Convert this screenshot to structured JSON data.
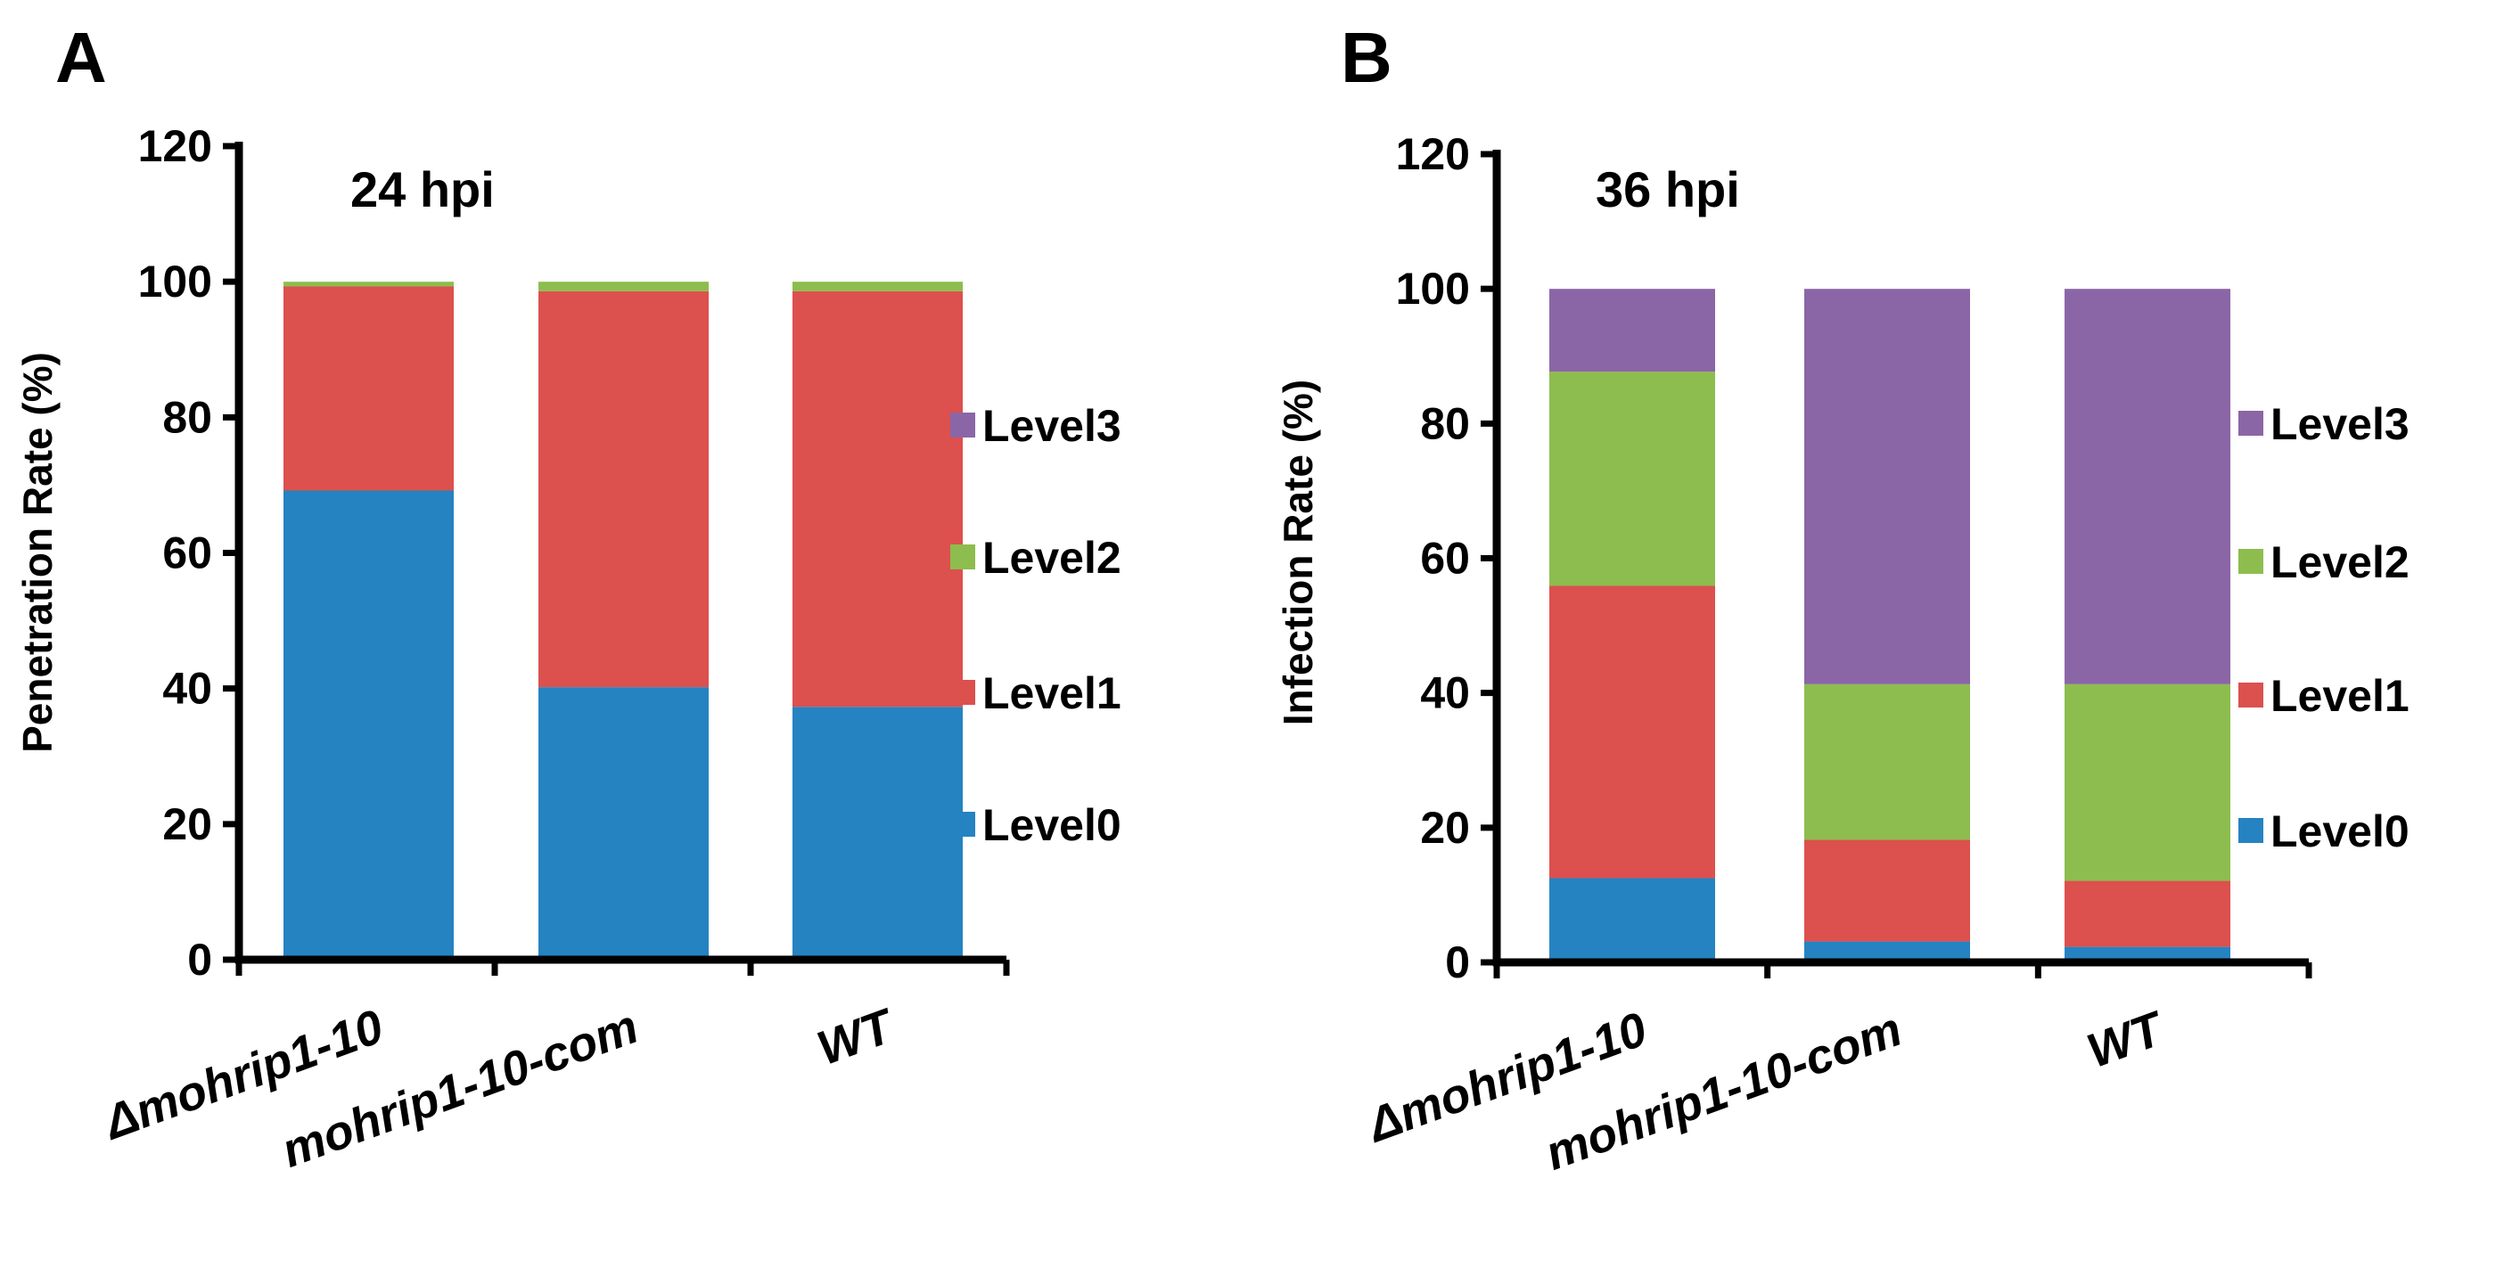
{
  "colors": {
    "Level0": "#2583c1",
    "Level1": "#dc504e",
    "Level2": "#8dbd4e",
    "Level3": "#8b66a6"
  },
  "chart_data": [
    {
      "panel": "A",
      "type": "bar",
      "stacked": true,
      "title": "24 hpi",
      "ylabel": "Penetration Rate (%)",
      "xlabel": "",
      "ylim": [
        0,
        120
      ],
      "yticks": [
        "0",
        "20",
        "40",
        "60",
        "80",
        "100",
        "120"
      ],
      "categories": [
        "Δmohrip1-10",
        "mohrip1-10-com",
        "WT"
      ],
      "legend_position": "right",
      "series": [
        {
          "name": "Level0",
          "values": [
            69.2,
            40.2,
            37.3
          ]
        },
        {
          "name": "Level1",
          "values": [
            30.1,
            58.4,
            61.3
          ]
        },
        {
          "name": "Level2",
          "values": [
            0.7,
            1.4,
            1.4
          ]
        },
        {
          "name": "Level3",
          "values": [
            0,
            0,
            0
          ]
        }
      ]
    },
    {
      "panel": "B",
      "type": "bar",
      "stacked": true,
      "title": "36 hpi",
      "ylabel": "Infection Rate (%)",
      "xlabel": "",
      "ylim": [
        0,
        120
      ],
      "yticks": [
        "0",
        "20",
        "40",
        "60",
        "80",
        "100",
        "120"
      ],
      "categories": [
        "Δmohrip1-10",
        "mohrip1-10-com",
        "WT"
      ],
      "legend_position": "right",
      "series": [
        {
          "name": "Level0",
          "values": [
            12.5,
            3.1,
            2.3
          ]
        },
        {
          "name": "Level1",
          "values": [
            43.4,
            15.1,
            9.8
          ]
        },
        {
          "name": "Level2",
          "values": [
            31.8,
            23.1,
            29.2
          ]
        },
        {
          "name": "Level3",
          "values": [
            12.3,
            58.7,
            58.7
          ]
        }
      ]
    }
  ]
}
